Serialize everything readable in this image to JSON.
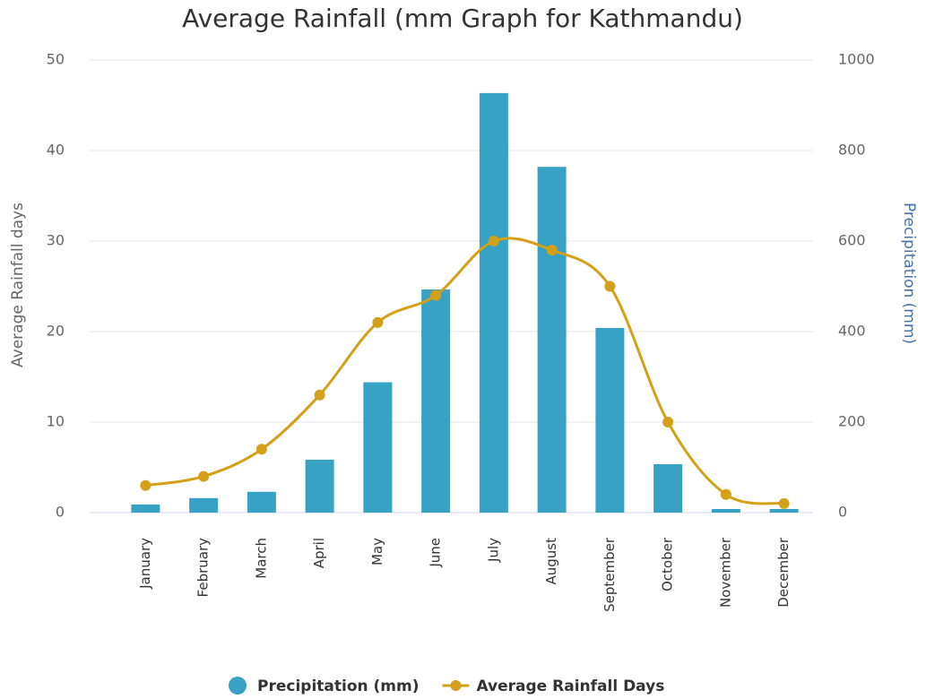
{
  "chart_data": {
    "type": "bar_line",
    "title": "Average Rainfall (mm Graph for Kathmandu)",
    "y_label": "Average Rainfall days",
    "y2_label": "Precipitation (mm)",
    "categories": [
      "January",
      "February",
      "March",
      "April",
      "May",
      "June",
      "July",
      "August",
      "September",
      "October",
      "November",
      "December"
    ],
    "series": [
      {
        "name": "Precipitation (mm)",
        "type": "bar",
        "axis": "y2",
        "color": "#37a2c4",
        "values": [
          18,
          32,
          46,
          117,
          288,
          493,
          927,
          764,
          408,
          107,
          8,
          8
        ]
      },
      {
        "name": "Average Rainfall Days",
        "type": "line",
        "color": "#d4a017",
        "values": [
          3,
          4,
          7,
          13,
          21,
          24,
          30,
          29,
          25,
          10,
          2,
          1
        ]
      }
    ],
    "ylim": [
      0,
      50
    ],
    "yticks": [
      0,
      10,
      20,
      30,
      40,
      50
    ],
    "y2lim": [
      0,
      1000
    ],
    "y2ticks": [
      0,
      200,
      400,
      600,
      800,
      1000
    ],
    "grid": true,
    "legend": "bottom"
  }
}
